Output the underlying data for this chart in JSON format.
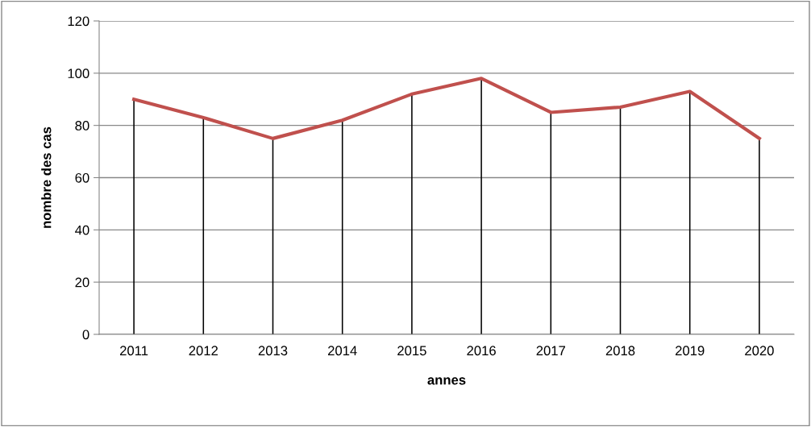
{
  "chart_data": {
    "type": "line",
    "xlabel": "annes",
    "ylabel": "nombre des cas",
    "categories": [
      "2011",
      "2012",
      "2013",
      "2014",
      "2015",
      "2016",
      "2017",
      "2018",
      "2019",
      "2020"
    ],
    "series": [
      {
        "type": "bar",
        "color": "#000000",
        "values": [
          90,
          83,
          75,
          82,
          92,
          98,
          85,
          87,
          93,
          75
        ]
      },
      {
        "color": "#c0504d",
        "values": [
          90,
          83,
          75,
          82,
          92,
          98,
          85,
          87,
          93,
          75
        ]
      }
    ],
    "ylim": [
      0,
      120
    ],
    "yticks": [
      0,
      20,
      40,
      60,
      80,
      100,
      120
    ],
    "grid": "y",
    "legend": false,
    "marker": "none",
    "line_style": "solid"
  }
}
